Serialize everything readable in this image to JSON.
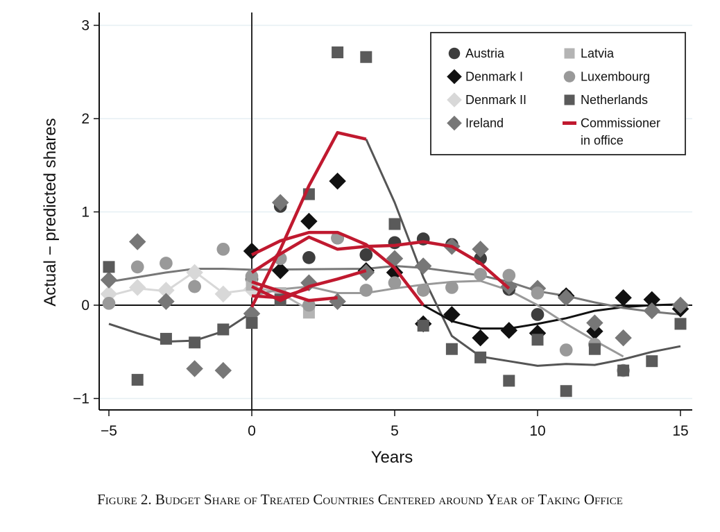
{
  "caption": "Figure 2. Budget Share of Treated Countries Centered around Year of Taking Office",
  "chart_data": {
    "type": "scatter",
    "title": "",
    "xlabel": "Years",
    "ylabel": "Actual − predicted shares",
    "xlim": [
      -5.4,
      15.4
    ],
    "ylim": [
      -1.12,
      3.15
    ],
    "xticks": [
      -5,
      0,
      5,
      10,
      15
    ],
    "xtick_labels": [
      "−5",
      "0",
      "5",
      "10",
      "15"
    ],
    "yticks": [
      -1,
      0,
      1,
      2,
      3
    ],
    "ytick_labels": [
      "−1",
      "0",
      "1",
      "2",
      "3"
    ],
    "grid": "horizontal",
    "legend_position": "top-right",
    "reference_lines": {
      "x": 0,
      "y": 0
    },
    "series": [
      {
        "name": "Austria",
        "marker": "circle",
        "color": "#3d3d3d",
        "legend_column": 1,
        "points": [
          [
            0,
            0.28
          ],
          [
            1,
            1.06
          ],
          [
            2,
            0.51
          ],
          [
            3,
            0.72
          ],
          [
            4,
            0.54
          ],
          [
            5,
            0.67
          ],
          [
            6,
            0.71
          ],
          [
            7,
            0.65
          ],
          [
            8,
            0.5
          ],
          [
            9,
            0.17
          ],
          [
            10,
            -0.1
          ],
          [
            11,
            0.1
          ]
        ],
        "line": [
          [
            4,
            1.78
          ],
          [
            5,
            1.1
          ],
          [
            6,
            0.3
          ],
          [
            7,
            -0.33
          ],
          [
            8,
            -0.55
          ],
          [
            9,
            -0.6
          ],
          [
            10,
            -0.65
          ],
          [
            11,
            -0.63
          ],
          [
            12,
            -0.64
          ],
          [
            13,
            -0.58
          ],
          [
            14,
            -0.5
          ],
          [
            15,
            -0.44
          ]
        ],
        "line_color": "#555555"
      },
      {
        "name": "Denmark I",
        "marker": "diamond",
        "color": "#111111",
        "legend_column": 1,
        "points": [
          [
            0,
            0.58
          ],
          [
            1,
            0.37
          ],
          [
            2,
            0.9
          ],
          [
            3,
            1.33
          ],
          [
            4,
            0.37
          ],
          [
            5,
            0.35
          ],
          [
            6,
            -0.2
          ],
          [
            7,
            -0.1
          ],
          [
            8,
            -0.35
          ],
          [
            9,
            -0.27
          ],
          [
            10,
            -0.3
          ],
          [
            11,
            0.1
          ],
          [
            12,
            -0.28
          ],
          [
            13,
            0.08
          ],
          [
            14,
            0.06
          ],
          [
            15,
            -0.04
          ]
        ],
        "line": [
          [
            6,
            0.0
          ],
          [
            7,
            -0.17
          ],
          [
            8,
            -0.25
          ],
          [
            9,
            -0.25
          ],
          [
            10,
            -0.2
          ],
          [
            11,
            -0.14
          ],
          [
            12,
            -0.06
          ],
          [
            13,
            -0.02
          ],
          [
            14,
            0.0
          ],
          [
            15,
            0.01
          ]
        ],
        "line_color": "#111111"
      },
      {
        "name": "Denmark II",
        "marker": "diamond",
        "color": "#d8d8d8",
        "legend_column": 1,
        "points": [
          [
            -5,
            0.12
          ],
          [
            -4,
            0.19
          ],
          [
            -3,
            0.16
          ],
          [
            -2,
            0.35
          ],
          [
            -1,
            0.12
          ],
          [
            0,
            0.17
          ]
        ],
        "line": [
          [
            -5,
            0.1
          ],
          [
            -4,
            0.18
          ],
          [
            -3,
            0.15
          ],
          [
            -2,
            0.36
          ],
          [
            -1,
            0.13
          ],
          [
            0,
            0.17
          ]
        ],
        "line_color": "#d8d8d8"
      },
      {
        "name": "Ireland",
        "marker": "diamond",
        "color": "#777777",
        "legend_column": 1,
        "points": [
          [
            -5,
            0.27
          ],
          [
            -4,
            0.68
          ],
          [
            -3,
            0.04
          ],
          [
            -2,
            -0.68
          ],
          [
            -1,
            -0.7
          ],
          [
            0,
            -0.09
          ],
          [
            1,
            1.1
          ],
          [
            2,
            0.24
          ],
          [
            3,
            0.04
          ],
          [
            4,
            0.35
          ],
          [
            5,
            0.5
          ],
          [
            6,
            0.42
          ],
          [
            7,
            0.63
          ],
          [
            8,
            0.6
          ],
          [
            9,
            0.2
          ],
          [
            10,
            0.18
          ],
          [
            11,
            0.08
          ],
          [
            12,
            -0.19
          ],
          [
            13,
            -0.35
          ],
          [
            14,
            -0.06
          ],
          [
            15,
            0.0
          ]
        ],
        "line": [
          [
            -5,
            0.25
          ],
          [
            -4,
            0.3
          ],
          [
            -3,
            0.35
          ],
          [
            -2,
            0.39
          ],
          [
            -1,
            0.39
          ],
          [
            0,
            0.38
          ],
          [
            4,
            0.39
          ],
          [
            5,
            0.42
          ],
          [
            6,
            0.4
          ],
          [
            7,
            0.36
          ],
          [
            8,
            0.32
          ],
          [
            9,
            0.25
          ],
          [
            10,
            0.15
          ],
          [
            11,
            0.1
          ],
          [
            12,
            0.03
          ],
          [
            13,
            -0.03
          ],
          [
            14,
            -0.07
          ],
          [
            15,
            -0.1
          ]
        ],
        "line_color": "#777777"
      },
      {
        "name": "Latvia",
        "marker": "square",
        "color": "#b4b4b4",
        "legend_column": 2,
        "points": [
          [
            0,
            0.22
          ],
          [
            1,
            0.13
          ],
          [
            2,
            -0.08
          ]
        ],
        "line": [
          [
            0,
            0.2
          ],
          [
            1,
            0.13
          ],
          [
            2,
            -0.05
          ]
        ],
        "line_color": "#b4b4b4"
      },
      {
        "name": "Luxembourg",
        "marker": "circle",
        "color": "#999999",
        "legend_column": 2,
        "points": [
          [
            -5,
            0.02
          ],
          [
            -4,
            0.41
          ],
          [
            -3,
            0.45
          ],
          [
            -2,
            0.2
          ],
          [
            -1,
            0.6
          ],
          [
            0,
            0.31
          ],
          [
            1,
            0.5
          ],
          [
            2,
            0.0
          ],
          [
            3,
            0.72
          ],
          [
            4,
            0.16
          ],
          [
            5,
            0.24
          ],
          [
            6,
            0.16
          ],
          [
            7,
            0.19
          ],
          [
            8,
            0.33
          ],
          [
            9,
            0.32
          ],
          [
            10,
            0.13
          ],
          [
            11,
            -0.48
          ],
          [
            12,
            -0.42
          ],
          [
            13,
            -0.7
          ]
        ],
        "line": [
          [
            0,
            0.1
          ],
          [
            1,
            0.17
          ],
          [
            2,
            0.2
          ],
          [
            3,
            0.13
          ],
          [
            4,
            0.13
          ],
          [
            5,
            0.18
          ],
          [
            6,
            0.22
          ],
          [
            7,
            0.25
          ],
          [
            8,
            0.26
          ],
          [
            9,
            0.16
          ],
          [
            10,
            0.0
          ],
          [
            11,
            -0.2
          ],
          [
            12,
            -0.38
          ],
          [
            13,
            -0.55
          ]
        ],
        "line_color": "#999999"
      },
      {
        "name": "Netherlands",
        "marker": "square",
        "color": "#5a5a5a",
        "legend_column": 2,
        "points": [
          [
            -5,
            0.41
          ],
          [
            -4,
            -0.8
          ],
          [
            -3,
            -0.36
          ],
          [
            -2,
            -0.4
          ],
          [
            -1,
            -0.26
          ],
          [
            0,
            -0.19
          ],
          [
            1,
            0.06
          ],
          [
            2,
            1.19
          ],
          [
            3,
            2.71
          ],
          [
            4,
            2.66
          ],
          [
            5,
            0.87
          ],
          [
            6,
            -0.22
          ],
          [
            7,
            -0.47
          ],
          [
            8,
            -0.56
          ],
          [
            9,
            -0.81
          ],
          [
            10,
            -0.37
          ],
          [
            11,
            -0.92
          ],
          [
            12,
            -0.47
          ],
          [
            13,
            -0.7
          ],
          [
            14,
            -0.6
          ],
          [
            15,
            -0.2
          ]
        ],
        "line": [
          [
            -5,
            -0.2
          ],
          [
            -4,
            -0.3
          ],
          [
            -3,
            -0.39
          ],
          [
            -2,
            -0.38
          ],
          [
            -1,
            -0.28
          ],
          [
            0,
            -0.08
          ]
        ],
        "line_color": "#555555"
      },
      {
        "name": "Commissioner\nin office",
        "legend_lines": [
          "Commissioner",
          "in office"
        ],
        "marker": "line",
        "color": "#c0192f",
        "legend_column": 2,
        "segments": [
          [
            [
              0,
              -0.02
            ],
            [
              1,
              0.6
            ],
            [
              2,
              1.28
            ],
            [
              3,
              1.85
            ],
            [
              4,
              1.78
            ]
          ],
          [
            [
              0,
              0.54
            ],
            [
              1,
              0.69
            ],
            [
              2,
              0.78
            ],
            [
              3,
              0.78
            ],
            [
              4,
              0.65
            ],
            [
              5,
              0.4
            ],
            [
              6,
              0.0
            ]
          ],
          [
            [
              0,
              0.35
            ],
            [
              1,
              0.55
            ],
            [
              2,
              0.73
            ],
            [
              3,
              0.6
            ],
            [
              4,
              0.63
            ],
            [
              5,
              0.64
            ],
            [
              6,
              0.68
            ],
            [
              7,
              0.63
            ],
            [
              8,
              0.45
            ],
            [
              9,
              0.18
            ]
          ],
          [
            [
              0,
              0.25
            ],
            [
              1,
              0.15
            ],
            [
              2,
              0.05
            ],
            [
              3,
              0.08
            ]
          ],
          [
            [
              0,
              0.2
            ],
            [
              1,
              0.05
            ],
            [
              2,
              0.2
            ],
            [
              3,
              0.28
            ],
            [
              4,
              0.37
            ]
          ],
          [
            [
              0,
              0.1
            ],
            [
              1,
              0.08
            ],
            [
              2,
              0.18
            ]
          ]
        ]
      }
    ]
  }
}
